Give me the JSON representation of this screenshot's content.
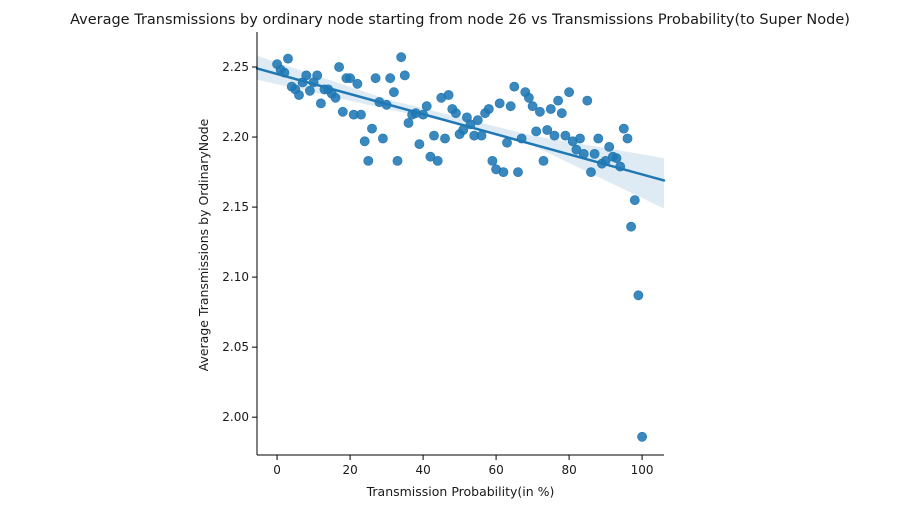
{
  "chart_data": {
    "type": "scatter",
    "title": "Average Transmissions by ordinary node starting from node 26 vs Transmissions Probability(to Super Node)",
    "xlabel": "Transmission Probability(in %)",
    "ylabel": "Average Transmissions by OrdinaryNode",
    "xlim": [
      -5.5,
      106
    ],
    "ylim": [
      1.973,
      2.275
    ],
    "xticks": [
      0,
      20,
      40,
      60,
      80,
      100
    ],
    "xtick_labels": [
      "0",
      "20",
      "40",
      "60",
      "80",
      "100"
    ],
    "yticks": [
      2.0,
      2.05,
      2.1,
      2.15,
      2.2,
      2.25
    ],
    "ytick_labels": [
      "2.00",
      "2.05",
      "2.10",
      "2.15",
      "2.20",
      "2.25"
    ],
    "grid": false,
    "legend": "none",
    "color": "#1f77b4",
    "ci_color": "#1f77b4",
    "regression": {
      "x": [
        -5.5,
        106
      ],
      "y": [
        2.249,
        2.169
      ],
      "ci_upper": [
        2.258,
        2.185
      ],
      "ci_lower": [
        2.241,
        2.149
      ],
      "ci_mid": [
        [
          30,
          2.227,
          2.22
        ],
        [
          50,
          2.214,
          2.209
        ],
        [
          70,
          2.201,
          2.194
        ]
      ]
    },
    "points": [
      [
        0,
        2.252
      ],
      [
        1,
        2.248
      ],
      [
        2,
        2.246
      ],
      [
        3,
        2.256
      ],
      [
        4,
        2.236
      ],
      [
        5,
        2.234
      ],
      [
        6,
        2.23
      ],
      [
        7,
        2.239
      ],
      [
        8,
        2.244
      ],
      [
        9,
        2.233
      ],
      [
        10,
        2.239
      ],
      [
        11,
        2.244
      ],
      [
        12,
        2.224
      ],
      [
        13,
        2.234
      ],
      [
        14,
        2.234
      ],
      [
        15,
        2.231
      ],
      [
        16,
        2.228
      ],
      [
        17,
        2.25
      ],
      [
        18,
        2.218
      ],
      [
        19,
        2.242
      ],
      [
        20,
        2.242
      ],
      [
        21,
        2.216
      ],
      [
        22,
        2.238
      ],
      [
        23,
        2.216
      ],
      [
        24,
        2.197
      ],
      [
        25,
        2.183
      ],
      [
        26,
        2.206
      ],
      [
        27,
        2.242
      ],
      [
        28,
        2.225
      ],
      [
        29,
        2.199
      ],
      [
        30,
        2.223
      ],
      [
        31,
        2.242
      ],
      [
        32,
        2.232
      ],
      [
        33,
        2.183
      ],
      [
        34,
        2.257
      ],
      [
        35,
        2.244
      ],
      [
        36,
        2.21
      ],
      [
        37,
        2.216
      ],
      [
        38,
        2.217
      ],
      [
        39,
        2.195
      ],
      [
        40,
        2.216
      ],
      [
        41,
        2.222
      ],
      [
        42,
        2.186
      ],
      [
        43,
        2.201
      ],
      [
        44,
        2.183
      ],
      [
        45,
        2.228
      ],
      [
        46,
        2.199
      ],
      [
        47,
        2.23
      ],
      [
        48,
        2.22
      ],
      [
        49,
        2.217
      ],
      [
        50,
        2.202
      ],
      [
        51,
        2.205
      ],
      [
        52,
        2.214
      ],
      [
        53,
        2.209
      ],
      [
        54,
        2.201
      ],
      [
        55,
        2.212
      ],
      [
        56,
        2.201
      ],
      [
        57,
        2.217
      ],
      [
        58,
        2.22
      ],
      [
        59,
        2.183
      ],
      [
        60,
        2.177
      ],
      [
        61,
        2.224
      ],
      [
        62,
        2.175
      ],
      [
        63,
        2.196
      ],
      [
        64,
        2.222
      ],
      [
        65,
        2.236
      ],
      [
        66,
        2.175
      ],
      [
        67,
        2.199
      ],
      [
        68,
        2.232
      ],
      [
        69,
        2.228
      ],
      [
        70,
        2.222
      ],
      [
        71,
        2.204
      ],
      [
        72,
        2.218
      ],
      [
        73,
        2.183
      ],
      [
        74,
        2.205
      ],
      [
        75,
        2.22
      ],
      [
        76,
        2.201
      ],
      [
        77,
        2.226
      ],
      [
        78,
        2.217
      ],
      [
        79,
        2.201
      ],
      [
        80,
        2.232
      ],
      [
        81,
        2.197
      ],
      [
        82,
        2.191
      ],
      [
        83,
        2.199
      ],
      [
        84,
        2.188
      ],
      [
        85,
        2.226
      ],
      [
        86,
        2.175
      ],
      [
        87,
        2.188
      ],
      [
        88,
        2.199
      ],
      [
        89,
        2.181
      ],
      [
        90,
        2.183
      ],
      [
        91,
        2.193
      ],
      [
        92,
        2.186
      ],
      [
        93,
        2.185
      ],
      [
        94,
        2.179
      ],
      [
        95,
        2.206
      ],
      [
        96,
        2.199
      ],
      [
        97,
        2.136
      ],
      [
        98,
        2.155
      ],
      [
        99,
        2.087
      ],
      [
        100,
        1.986
      ]
    ]
  }
}
